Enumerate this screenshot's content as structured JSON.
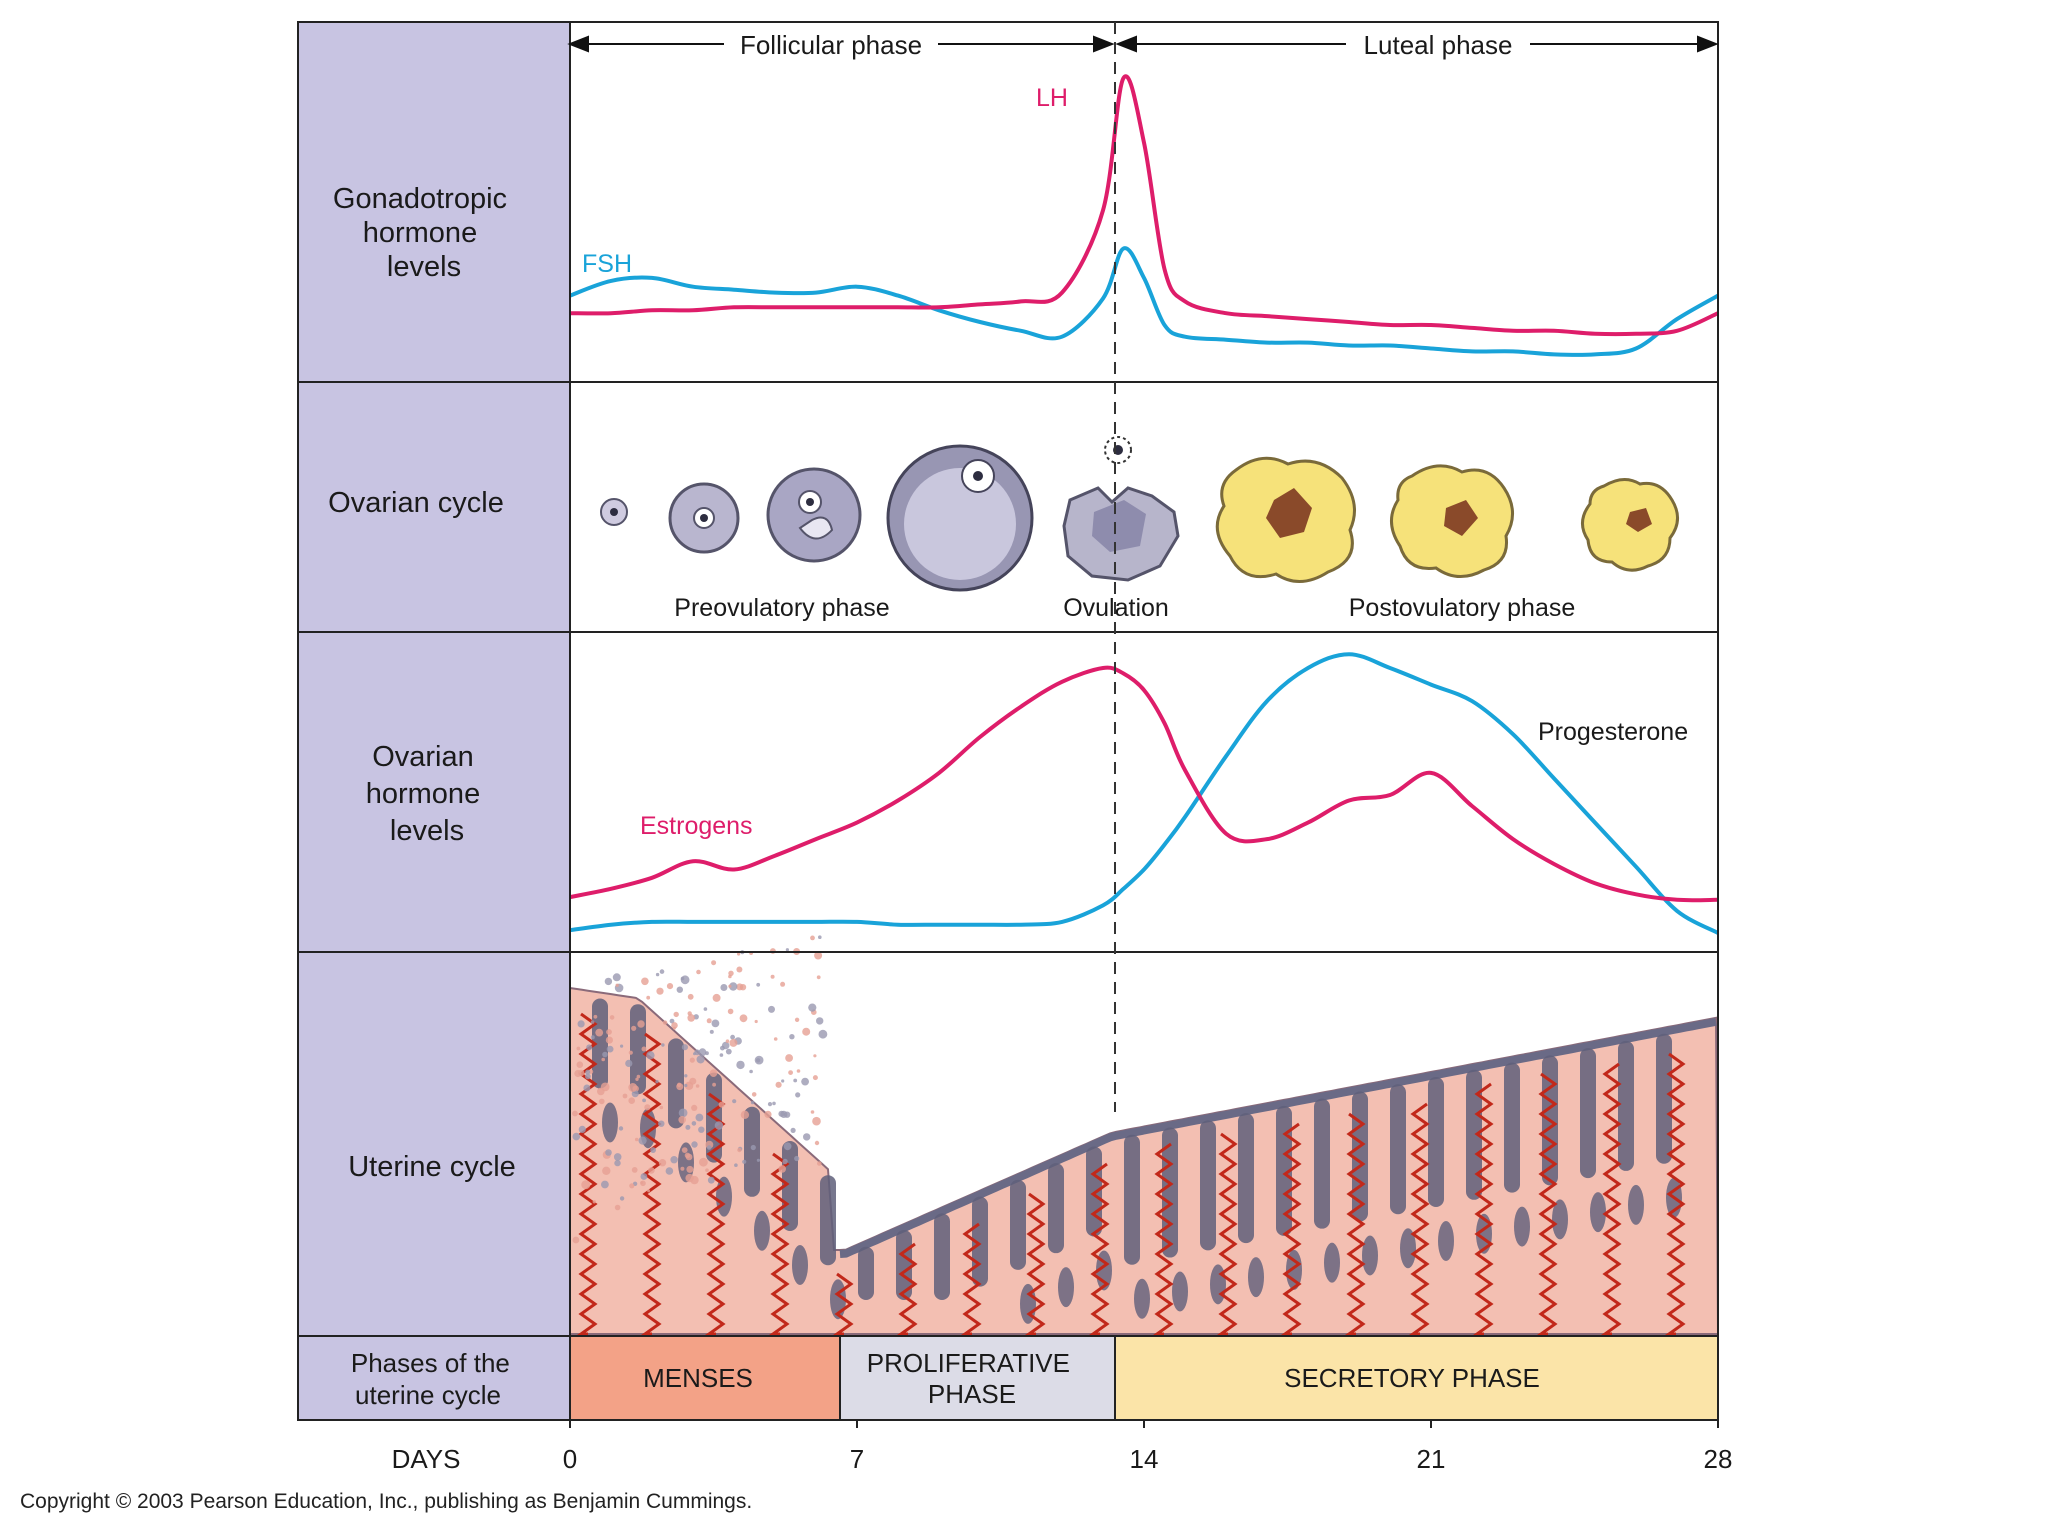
{
  "colors": {
    "label_column": "#c8c4e2",
    "lh": "#de1d6a",
    "fsh": "#19a3d9",
    "estrogens": "#de1d6a",
    "progesterone": "#19a3d9",
    "menses": "#f3a287",
    "proliferative": "#dcdce7",
    "secretory": "#fbe4a8",
    "tissue": "#f3bfb2",
    "gland": "#5f5f7a",
    "vessel": "#c2281a",
    "corpus": "#f6e27a"
  },
  "phases": {
    "follicular": "Follicular phase",
    "luteal": "Luteal phase"
  },
  "rows": {
    "gonadotropic": [
      "Gonadotropic",
      "hormone",
      "levels"
    ],
    "ovarian_cycle": "Ovarian cycle",
    "ovarian_hormone": [
      "Ovarian",
      "hormone",
      "levels"
    ],
    "uterine_cycle": "Uterine cycle",
    "uterine_phases": [
      "Phases of the",
      "uterine cycle"
    ]
  },
  "ovarian": {
    "preovulatory": "Preovulatory phase",
    "ovulation": "Ovulation",
    "postovulatory": "Postovulatory phase"
  },
  "uterine_phase_bars": {
    "menses": "MENSES",
    "proliferative": [
      "PROLIFERATIVE",
      "PHASE"
    ],
    "secretory": "SECRETORY PHASE"
  },
  "axis": {
    "label": "DAYS",
    "ticks": [
      "0",
      "7",
      "14",
      "21",
      "28"
    ]
  },
  "hormones": {
    "lh": "LH",
    "fsh": "FSH",
    "estrogens": "Estrogens",
    "progesterone": "Progesterone"
  },
  "curves": {
    "days": [
      0,
      1,
      2,
      3,
      4,
      5,
      6,
      7,
      8,
      9,
      10,
      11,
      12,
      13,
      13.5,
      14,
      14.5,
      15,
      16,
      17,
      18,
      19,
      20,
      21,
      22,
      23,
      24,
      25,
      26,
      27,
      28
    ],
    "fsh": [
      0.26,
      0.31,
      0.32,
      0.29,
      0.28,
      0.27,
      0.27,
      0.29,
      0.26,
      0.21,
      0.17,
      0.14,
      0.12,
      0.25,
      0.42,
      0.32,
      0.16,
      0.12,
      0.11,
      0.1,
      0.1,
      0.09,
      0.09,
      0.08,
      0.07,
      0.07,
      0.06,
      0.06,
      0.08,
      0.18,
      0.26
    ],
    "lh": [
      0.2,
      0.2,
      0.21,
      0.21,
      0.22,
      0.22,
      0.22,
      0.22,
      0.22,
      0.22,
      0.23,
      0.24,
      0.27,
      0.55,
      1.0,
      0.78,
      0.35,
      0.24,
      0.2,
      0.19,
      0.18,
      0.17,
      0.16,
      0.16,
      0.15,
      0.14,
      0.14,
      0.13,
      0.13,
      0.14,
      0.2
    ],
    "estrogens": [
      0.17,
      0.2,
      0.24,
      0.3,
      0.27,
      0.32,
      0.38,
      0.44,
      0.52,
      0.62,
      0.75,
      0.86,
      0.95,
      1.0,
      0.98,
      0.92,
      0.8,
      0.63,
      0.4,
      0.38,
      0.44,
      0.52,
      0.54,
      0.62,
      0.5,
      0.38,
      0.29,
      0.22,
      0.18,
      0.16,
      0.16
    ],
    "progesterone": [
      0.05,
      0.07,
      0.08,
      0.08,
      0.08,
      0.08,
      0.08,
      0.08,
      0.07,
      0.07,
      0.07,
      0.07,
      0.08,
      0.14,
      0.2,
      0.27,
      0.36,
      0.46,
      0.68,
      0.88,
      1.0,
      1.05,
      1.0,
      0.94,
      0.88,
      0.76,
      0.6,
      0.44,
      0.28,
      0.12,
      0.04
    ]
  }
}
